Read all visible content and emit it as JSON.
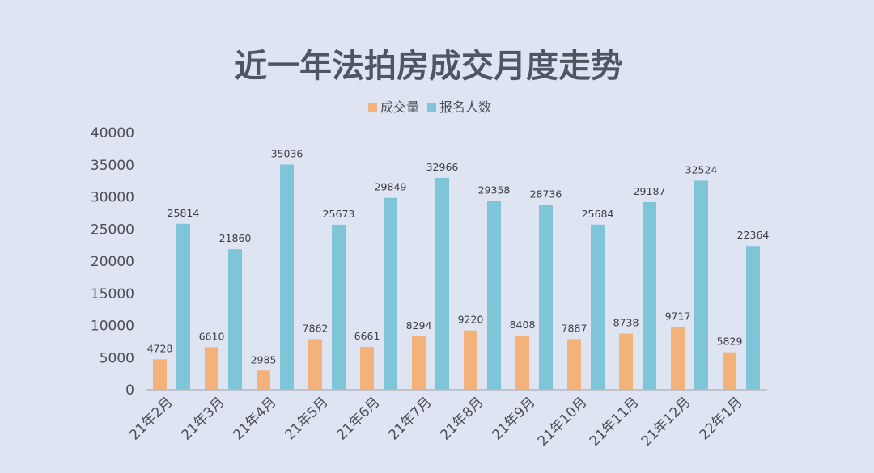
{
  "chart_data": {
    "type": "bar",
    "title": "近一年法拍房成交月度走势",
    "categories": [
      "21年2月",
      "21年3月",
      "21年4月",
      "21年5月",
      "21年6月",
      "21年7月",
      "21年8月",
      "21年9月",
      "21年10月",
      "21年11月",
      "21年12月",
      "22年1月"
    ],
    "series": [
      {
        "name": "成交量",
        "color": "#f2b27a",
        "values": [
          4728,
          6610,
          2985,
          7862,
          6661,
          8294,
          9220,
          8408,
          7887,
          8738,
          9717,
          5829
        ]
      },
      {
        "name": "报名人数",
        "color": "#7ec5d8",
        "values": [
          25814,
          21860,
          35036,
          25673,
          29849,
          32966,
          29358,
          28736,
          25684,
          29187,
          32524,
          22364
        ]
      }
    ],
    "ylim": [
      0,
      40000
    ],
    "yticks": [
      0,
      5000,
      10000,
      15000,
      20000,
      25000,
      30000,
      35000,
      40000
    ],
    "legend_position": "top-center",
    "grid": false
  }
}
